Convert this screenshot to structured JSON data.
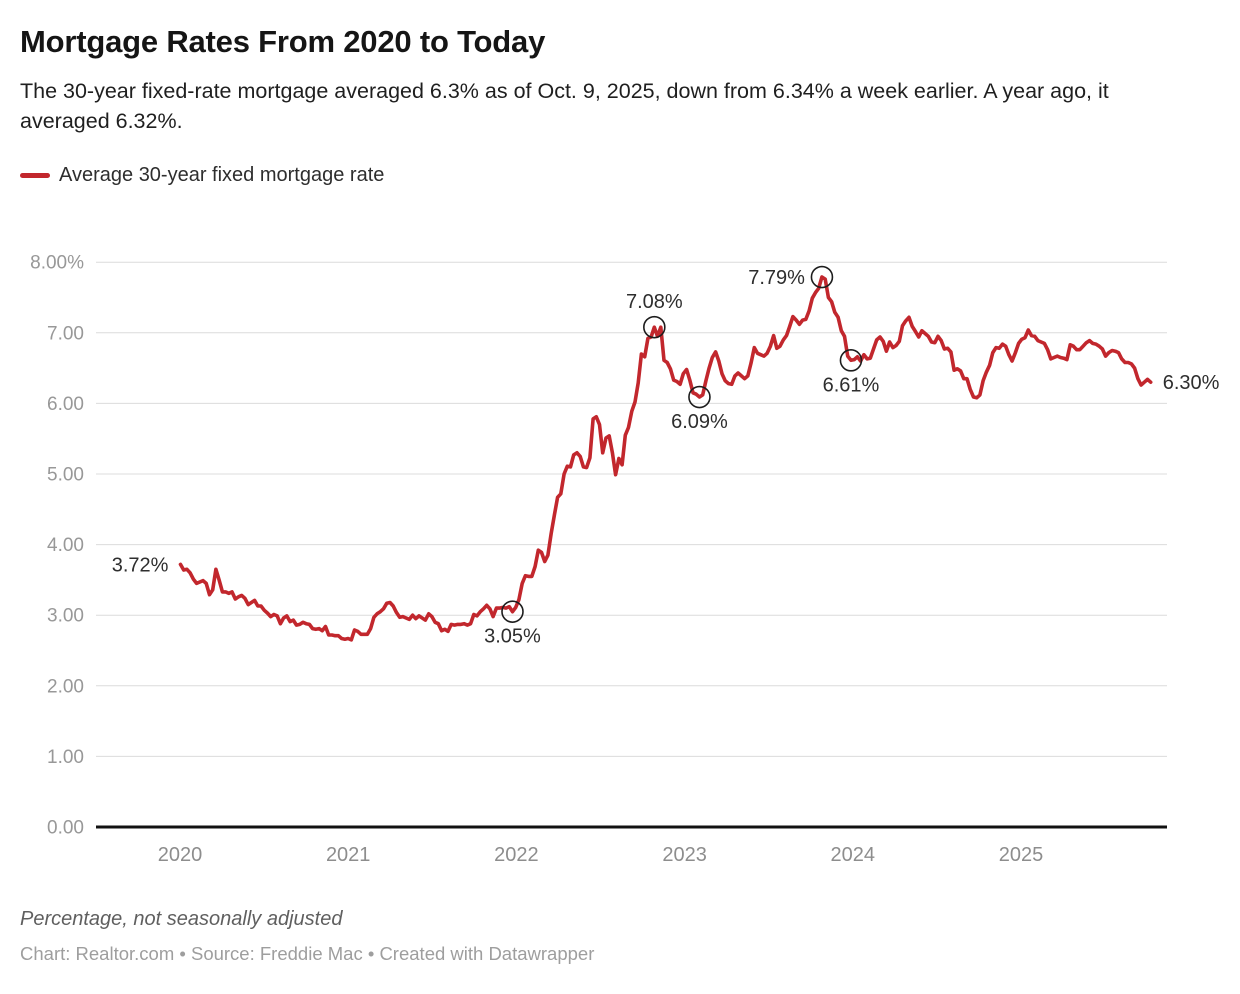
{
  "header": {
    "title": "Mortgage Rates From 2020 to Today",
    "subtitle": "The 30-year fixed-rate mortgage averaged 6.3% as of Oct. 9, 2025, down from 6.34% a week earlier. A year ago, it averaged 6.32%."
  },
  "legend": {
    "series_label": "Average 30-year fixed mortgage rate",
    "swatch_color": "#c2272d"
  },
  "chart_data": {
    "type": "line",
    "title": "Mortgage Rates From 2020 to Today",
    "series_name": "Average 30-year fixed mortgage rate",
    "unit": "percent, weekly",
    "x_start_date": "2020-01-02",
    "x_interval_days": 7,
    "x_end_date": "2025-10-09",
    "line_color": "#c2272d",
    "grid": true,
    "ylim": [
      0,
      8
    ],
    "y_ticks": [
      "8.00%",
      "7.00",
      "6.00",
      "5.00",
      "4.00",
      "3.00",
      "2.00",
      "1.00",
      "0.00"
    ],
    "y_tick_values": [
      8,
      7,
      6,
      5,
      4,
      3,
      2,
      1,
      0
    ],
    "x_ticks": [
      "2020",
      "2021",
      "2022",
      "2023",
      "2024",
      "2025"
    ],
    "values": [
      3.72,
      3.64,
      3.65,
      3.6,
      3.51,
      3.45,
      3.47,
      3.49,
      3.45,
      3.29,
      3.36,
      3.65,
      3.5,
      3.33,
      3.33,
      3.31,
      3.33,
      3.23,
      3.26,
      3.28,
      3.24,
      3.15,
      3.18,
      3.21,
      3.13,
      3.13,
      3.07,
      3.03,
      2.98,
      3.01,
      2.99,
      2.88,
      2.96,
      2.99,
      2.91,
      2.93,
      2.86,
      2.87,
      2.9,
      2.88,
      2.87,
      2.81,
      2.8,
      2.81,
      2.78,
      2.84,
      2.72,
      2.72,
      2.71,
      2.71,
      2.67,
      2.66,
      2.67,
      2.65,
      2.79,
      2.77,
      2.73,
      2.73,
      2.73,
      2.81,
      2.97,
      3.02,
      3.05,
      3.09,
      3.17,
      3.18,
      3.13,
      3.04,
      2.97,
      2.98,
      2.96,
      2.94,
      3.0,
      2.95,
      2.99,
      2.96,
      2.93,
      3.02,
      2.98,
      2.9,
      2.88,
      2.78,
      2.8,
      2.77,
      2.87,
      2.86,
      2.87,
      2.87,
      2.88,
      2.86,
      2.88,
      3.01,
      2.99,
      3.05,
      3.09,
      3.14,
      3.09,
      2.98,
      3.1,
      3.1,
      3.11,
      3.1,
      3.12,
      3.05,
      3.11,
      3.22,
      3.45,
      3.56,
      3.55,
      3.55,
      3.69,
      3.92,
      3.89,
      3.76,
      3.85,
      4.16,
      4.42,
      4.67,
      4.72,
      5.0,
      5.11,
      5.1,
      5.27,
      5.3,
      5.25,
      5.1,
      5.09,
      5.23,
      5.78,
      5.81,
      5.7,
      5.3,
      5.51,
      5.54,
      5.3,
      4.99,
      5.22,
      5.13,
      5.55,
      5.66,
      5.89,
      6.02,
      6.29,
      6.7,
      6.66,
      6.92,
      6.94,
      7.08,
      6.95,
      7.08,
      6.61,
      6.58,
      6.49,
      6.33,
      6.31,
      6.27,
      6.42,
      6.48,
      6.33,
      6.15,
      6.13,
      6.09,
      6.12,
      6.32,
      6.5,
      6.65,
      6.73,
      6.6,
      6.42,
      6.32,
      6.28,
      6.27,
      6.39,
      6.43,
      6.39,
      6.35,
      6.39,
      6.57,
      6.79,
      6.71,
      6.69,
      6.67,
      6.71,
      6.81,
      6.96,
      6.78,
      6.81,
      6.9,
      6.96,
      7.09,
      7.23,
      7.18,
      7.12,
      7.18,
      7.19,
      7.31,
      7.49,
      7.57,
      7.63,
      7.79,
      7.76,
      7.5,
      7.44,
      7.29,
      7.22,
      7.03,
      6.95,
      6.67,
      6.61,
      6.62,
      6.66,
      6.6,
      6.69,
      6.63,
      6.64,
      6.77,
      6.9,
      6.94,
      6.88,
      6.74,
      6.87,
      6.79,
      6.82,
      6.88,
      7.1,
      7.17,
      7.22,
      7.09,
      7.02,
      6.94,
      7.03,
      6.99,
      6.95,
      6.87,
      6.86,
      6.95,
      6.89,
      6.77,
      6.78,
      6.73,
      6.47,
      6.49,
      6.46,
      6.35,
      6.35,
      6.2,
      6.09,
      6.08,
      6.12,
      6.32,
      6.44,
      6.54,
      6.72,
      6.79,
      6.78,
      6.84,
      6.81,
      6.69,
      6.6,
      6.72,
      6.85,
      6.91,
      6.93,
      7.04,
      6.96,
      6.95,
      6.89,
      6.87,
      6.85,
      6.76,
      6.63,
      6.65,
      6.67,
      6.65,
      6.64,
      6.62,
      6.83,
      6.81,
      6.76,
      6.76,
      6.81,
      6.86,
      6.89,
      6.85,
      6.84,
      6.81,
      6.77,
      6.67,
      6.72,
      6.75,
      6.74,
      6.72,
      6.63,
      6.58,
      6.58,
      6.56,
      6.5,
      6.35,
      6.26,
      6.3,
      6.34,
      6.3
    ],
    "annotations": [
      {
        "label": "3.72%",
        "index": 0,
        "value": 3.72,
        "marker": false,
        "placement": "left"
      },
      {
        "label": "3.05%",
        "index": 103,
        "value": 3.05,
        "marker": true,
        "placement": "below"
      },
      {
        "label": "7.08%",
        "index": 147,
        "value": 7.08,
        "marker": true,
        "placement": "above"
      },
      {
        "label": "6.09%",
        "index": 161,
        "value": 6.09,
        "marker": true,
        "placement": "below"
      },
      {
        "label": "7.79%",
        "index": 199,
        "value": 7.79,
        "marker": true,
        "placement": "left"
      },
      {
        "label": "6.61%",
        "index": 208,
        "value": 6.61,
        "marker": true,
        "placement": "below"
      },
      {
        "label": "6.30%",
        "index": 301,
        "value": 6.3,
        "marker": false,
        "placement": "right"
      }
    ],
    "colors": {
      "grid": "#dcdcdc",
      "axis_baseline": "#111111",
      "marker_stroke": "#1d1d1d"
    }
  },
  "footer": {
    "note": "Percentage, not seasonally adjusted",
    "credit": "Chart: Realtor.com • Source: Freddie Mac • Created with Datawrapper"
  }
}
